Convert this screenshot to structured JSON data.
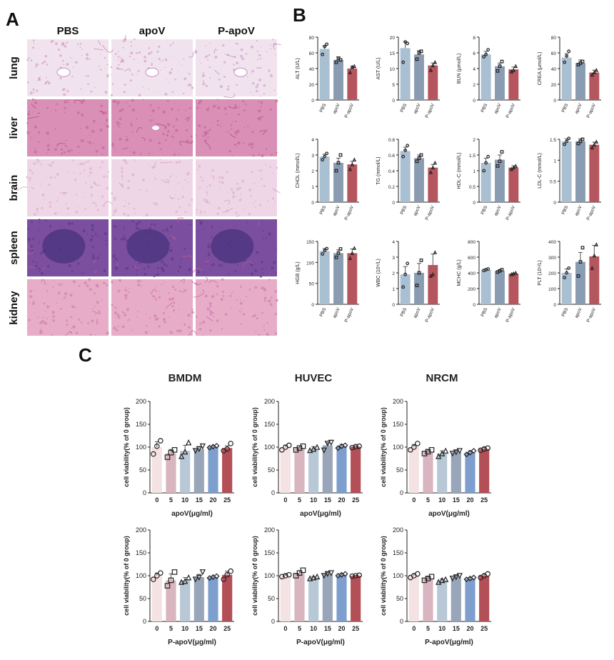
{
  "panel_labels": {
    "a": "A",
    "b": "B",
    "c": "C"
  },
  "histology": {
    "columns": [
      "PBS",
      "apoV",
      "P-apoV"
    ],
    "rows": [
      {
        "tissue": "lung",
        "base": "#f1e3ee",
        "dot": "#d7a7cd",
        "accent": "#c58fbc"
      },
      {
        "tissue": "liver",
        "base": "#d98fb6",
        "dot": "#c7689e",
        "accent": "#b7508e"
      },
      {
        "tissue": "brain",
        "base": "#efd6e6",
        "dot": "#dfb6cf",
        "accent": "#d4a3c3"
      },
      {
        "tissue": "spleen",
        "base": "#7b4e9f",
        "dot": "#5c3c8a",
        "accent": "#c35e8f"
      },
      {
        "tissue": "kidney",
        "base": "#e7acc8",
        "dot": "#d283af",
        "accent": "#c7709f"
      }
    ]
  },
  "colors": {
    "pbs_bar": "#a9bfd2",
    "apov_bar": "#8a9cb1",
    "papov_bar": "#b5565e",
    "axis": "#222222",
    "via_colors": [
      "#f4e3e2",
      "#d9b5c0",
      "#b8c8d6",
      "#99a6ba",
      "#7e9fce",
      "#b34f56"
    ]
  },
  "chart_data": [
    {
      "type": "bar",
      "id": "alt",
      "ylabel": "ALT (U/L)",
      "categories": [
        "PBS",
        "apoV",
        "P-apoV"
      ],
      "values": [
        65,
        51,
        40
      ],
      "errors": [
        4,
        4,
        3
      ],
      "ylim": [
        0,
        80
      ],
      "yticks": [
        0,
        20,
        40,
        60,
        80
      ],
      "points": [
        [
          58,
          68,
          71
        ],
        [
          48,
          53,
          51
        ],
        [
          35,
          42,
          43
        ]
      ],
      "markers": [
        "circle",
        "square",
        "triangle"
      ]
    },
    {
      "type": "bar",
      "id": "ast",
      "ylabel": "AST (U/L)",
      "categories": [
        "PBS",
        "apoV",
        "P-apoV"
      ],
      "values": [
        16.5,
        14.5,
        11
      ],
      "errors": [
        2,
        1.2,
        0.8
      ],
      "ylim": [
        0,
        20
      ],
      "yticks": [
        0,
        5,
        10,
        15,
        20
      ],
      "points": [
        [
          12,
          18.5,
          18
        ],
        [
          13,
          15,
          15.5
        ],
        [
          9.5,
          11,
          12
        ]
      ],
      "markers": [
        "circle",
        "square",
        "triangle"
      ]
    },
    {
      "type": "bar",
      "id": "bun",
      "ylabel": "BUN (μmol/L)",
      "categories": [
        "PBS",
        "apoV",
        "P-apoV"
      ],
      "values": [
        5.8,
        4.3,
        3.9
      ],
      "errors": [
        0.4,
        0.4,
        0.3
      ],
      "ylim": [
        0,
        8
      ],
      "yticks": [
        0,
        2,
        4,
        6,
        8
      ],
      "points": [
        [
          5.5,
          5.8,
          6.4
        ],
        [
          3.7,
          4.3,
          4.9
        ],
        [
          3.6,
          3.8,
          4.3
        ]
      ],
      "markers": [
        "circle",
        "square",
        "triangle"
      ]
    },
    {
      "type": "bar",
      "id": "crea",
      "ylabel": "CREA (μmol/L)",
      "categories": [
        "PBS",
        "apoV",
        "P-apoV"
      ],
      "values": [
        54,
        47,
        35
      ],
      "errors": [
        5,
        4,
        3
      ],
      "ylim": [
        0,
        80
      ],
      "yticks": [
        0,
        20,
        40,
        60,
        80
      ],
      "points": [
        [
          48,
          56,
          62
        ],
        [
          45,
          47,
          49
        ],
        [
          32,
          35,
          38
        ]
      ],
      "markers": [
        "circle",
        "square",
        "triangle"
      ]
    },
    {
      "type": "bar",
      "id": "chol",
      "ylabel": "CHOL (mmol/L)",
      "categories": [
        "PBS",
        "apoV",
        "P-apoV"
      ],
      "values": [
        2.9,
        2.5,
        2.4
      ],
      "errors": [
        0.15,
        0.3,
        0.2
      ],
      "ylim": [
        0,
        4
      ],
      "yticks": [
        0,
        1,
        2,
        3,
        4
      ],
      "points": [
        [
          2.7,
          2.9,
          3.1
        ],
        [
          2.0,
          2.5,
          3.0
        ],
        [
          2.1,
          2.4,
          2.7
        ]
      ],
      "markers": [
        "circle",
        "square",
        "triangle"
      ]
    },
    {
      "type": "bar",
      "id": "tg",
      "ylabel": "TG (mmol/L)",
      "categories": [
        "PBS",
        "apoV",
        "P-apoV"
      ],
      "values": [
        0.65,
        0.56,
        0.44
      ],
      "errors": [
        0.05,
        0.04,
        0.04
      ],
      "ylim": [
        0,
        0.8
      ],
      "yticks": [
        0.0,
        0.2,
        0.4,
        0.6,
        0.8
      ],
      "points": [
        [
          0.58,
          0.66,
          0.72
        ],
        [
          0.52,
          0.56,
          0.6
        ],
        [
          0.38,
          0.44,
          0.5
        ]
      ],
      "markers": [
        "circle",
        "square",
        "triangle"
      ]
    },
    {
      "type": "bar",
      "id": "hdlc",
      "ylabel": "HDL-C (mmol/L)",
      "categories": [
        "PBS",
        "apoV",
        "P-apoV"
      ],
      "values": [
        1.25,
        1.35,
        1.1
      ],
      "errors": [
        0.15,
        0.15,
        0.06
      ],
      "ylim": [
        0,
        2
      ],
      "yticks": [
        0.0,
        0.5,
        1.0,
        1.5,
        2.0
      ],
      "points": [
        [
          1.0,
          1.25,
          1.45
        ],
        [
          1.15,
          1.3,
          1.6
        ],
        [
          1.05,
          1.1,
          1.15
        ]
      ],
      "markers": [
        "circle",
        "square",
        "triangle"
      ]
    },
    {
      "type": "bar",
      "id": "ldlc",
      "ylabel": "LDL-C (mmol/L)",
      "categories": [
        "PBS",
        "apoV",
        "P-apoV"
      ],
      "values": [
        1.45,
        1.45,
        1.37
      ],
      "errors": [
        0.06,
        0.06,
        0.06
      ],
      "ylim": [
        0,
        1.5
      ],
      "yticks": [
        0.0,
        0.5,
        1.0,
        1.5
      ],
      "points": [
        [
          1.38,
          1.45,
          1.52
        ],
        [
          1.4,
          1.45,
          1.5
        ],
        [
          1.3,
          1.37,
          1.44
        ]
      ],
      "markers": [
        "circle",
        "square",
        "triangle"
      ]
    },
    {
      "type": "bar",
      "id": "hgb",
      "ylabel": "HGB (g/L)",
      "categories": [
        "PBS",
        "apoV",
        "P-apoV"
      ],
      "values": [
        127,
        122,
        122
      ],
      "errors": [
        6,
        8,
        10
      ],
      "ylim": [
        0,
        150
      ],
      "yticks": [
        0,
        50,
        100,
        150
      ],
      "points": [
        [
          120,
          128,
          133
        ],
        [
          112,
          122,
          132
        ],
        [
          110,
          122,
          134
        ]
      ],
      "markers": [
        "circle",
        "square",
        "triangle"
      ]
    },
    {
      "type": "bar",
      "id": "wbc",
      "ylabel": "WBC (10⁹/L)",
      "categories": [
        "PBS",
        "apoV",
        "P-apoV"
      ],
      "values": [
        1.9,
        2.0,
        2.5
      ],
      "errors": [
        0.5,
        0.6,
        0.7
      ],
      "ylim": [
        0,
        4
      ],
      "yticks": [
        0,
        1,
        2,
        3,
        4
      ],
      "points": [
        [
          1.1,
          1.9,
          2.6
        ],
        [
          1.2,
          2.0,
          2.8
        ],
        [
          1.8,
          1.9,
          3.3
        ]
      ],
      "markers": [
        "circle",
        "square",
        "triangle"
      ]
    },
    {
      "type": "bar",
      "id": "mchc",
      "ylabel": "MCHC (g/L)",
      "categories": [
        "PBS",
        "apoV",
        "P-apoV"
      ],
      "values": [
        440,
        425,
        390
      ],
      "errors": [
        8,
        10,
        8
      ],
      "ylim": [
        0,
        800
      ],
      "yticks": [
        0,
        200,
        400,
        600,
        800
      ],
      "points": [
        [
          430,
          440,
          450
        ],
        [
          410,
          425,
          440
        ],
        [
          380,
          390,
          400
        ]
      ],
      "markers": [
        "circle",
        "square",
        "triangle"
      ]
    },
    {
      "type": "bar",
      "id": "plt",
      "ylabel": "PLT (10⁹/L)",
      "categories": [
        "PBS",
        "apoV",
        "P-apoV"
      ],
      "values": [
        200,
        270,
        305
      ],
      "errors": [
        25,
        60,
        70
      ],
      "ylim": [
        0,
        400
      ],
      "yticks": [
        0,
        100,
        200,
        300,
        400
      ],
      "points": [
        [
          170,
          200,
          230
        ],
        [
          180,
          270,
          360
        ],
        [
          230,
          310,
          380
        ]
      ],
      "markers": [
        "circle",
        "square",
        "triangle"
      ]
    },
    {
      "type": "bar",
      "id": "bmdm_apov",
      "title": "BMDM",
      "ylabel": "cell viability(% of 0 group)",
      "xlabel": "apoV(μg/ml)",
      "categories": [
        "0",
        "5",
        "10",
        "15",
        "20",
        "25"
      ],
      "values": [
        100,
        87,
        92,
        96,
        101,
        98
      ],
      "errors": [
        12,
        8,
        12,
        5,
        2,
        5
      ],
      "ylim": [
        0,
        200
      ],
      "yticks": [
        0,
        50,
        100,
        150,
        200
      ],
      "points": [
        [
          85,
          102,
          114
        ],
        [
          78,
          88,
          94
        ],
        [
          80,
          90,
          110
        ],
        [
          92,
          96,
          102
        ],
        [
          99,
          101,
          103
        ],
        [
          92,
          96,
          108
        ]
      ],
      "markers": [
        "circle",
        "square",
        "triangle",
        "down-triangle",
        "diamond",
        "circle"
      ]
    },
    {
      "type": "bar",
      "id": "huvec_apov",
      "title": "HUVEC",
      "ylabel": "cell viability(% of 0 group)",
      "xlabel": "apoV(μg/ml)",
      "categories": [
        "0",
        "5",
        "10",
        "15",
        "20",
        "25"
      ],
      "values": [
        100,
        98,
        96,
        104,
        102,
        101
      ],
      "errors": [
        4,
        5,
        5,
        6,
        4,
        2
      ],
      "ylim": [
        0,
        200
      ],
      "yticks": [
        0,
        50,
        100,
        150,
        200
      ],
      "points": [
        [
          94,
          100,
          104
        ],
        [
          94,
          98,
          102
        ],
        [
          93,
          96,
          100
        ],
        [
          93,
          108,
          110
        ],
        [
          98,
          102,
          104
        ],
        [
          99,
          101,
          102
        ]
      ],
      "markers": [
        "circle",
        "square",
        "triangle",
        "down-triangle",
        "diamond",
        "circle"
      ]
    },
    {
      "type": "bar",
      "id": "nrcm_apov",
      "title": "NRCM",
      "ylabel": "cell viability(% of 0 group)",
      "xlabel": "apoV(μg/ml)",
      "categories": [
        "0",
        "5",
        "10",
        "15",
        "20",
        "25"
      ],
      "values": [
        100,
        90,
        86,
        89,
        88,
        96
      ],
      "errors": [
        6,
        4,
        6,
        3,
        4,
        3
      ],
      "ylim": [
        0,
        200
      ],
      "yticks": [
        0,
        50,
        100,
        150,
        200
      ],
      "points": [
        [
          94,
          100,
          108
        ],
        [
          86,
          90,
          94
        ],
        [
          80,
          86,
          92
        ],
        [
          86,
          89,
          92
        ],
        [
          84,
          88,
          92
        ],
        [
          93,
          96,
          98
        ]
      ],
      "markers": [
        "circle",
        "square",
        "triangle",
        "down-triangle",
        "diamond",
        "circle"
      ]
    },
    {
      "type": "bar",
      "id": "bmdm_papov",
      "ylabel": "cell viability(% of 0 group)",
      "xlabel": "P-apoV(μg/ml)",
      "categories": [
        "0",
        "5",
        "10",
        "15",
        "20",
        "25"
      ],
      "values": [
        100,
        90,
        90,
        97,
        97,
        102
      ],
      "errors": [
        6,
        14,
        6,
        6,
        2,
        8
      ],
      "ylim": [
        0,
        200
      ],
      "yticks": [
        0,
        50,
        100,
        150,
        200
      ],
      "points": [
        [
          92,
          100,
          106
        ],
        [
          78,
          90,
          108
        ],
        [
          86,
          88,
          96
        ],
        [
          92,
          96,
          108
        ],
        [
          95,
          97,
          99
        ],
        [
          92,
          102,
          110
        ]
      ],
      "markers": [
        "circle",
        "square",
        "triangle",
        "down-triangle",
        "diamond",
        "circle"
      ]
    },
    {
      "type": "bar",
      "id": "huvec_papov",
      "ylabel": "cell viability(% of 0 group)",
      "xlabel": "P-apoV(μg/ml)",
      "categories": [
        "0",
        "5",
        "10",
        "15",
        "20",
        "25"
      ],
      "values": [
        100,
        106,
        96,
        104,
        102,
        100
      ],
      "errors": [
        3,
        5,
        2,
        3,
        2,
        1
      ],
      "ylim": [
        0,
        200
      ],
      "yticks": [
        0,
        50,
        100,
        150,
        200
      ],
      "points": [
        [
          98,
          100,
          102
        ],
        [
          100,
          106,
          112
        ],
        [
          94,
          96,
          98
        ],
        [
          100,
          104,
          106
        ],
        [
          100,
          102,
          104
        ],
        [
          99,
          100,
          101
        ]
      ],
      "markers": [
        "circle",
        "square",
        "triangle",
        "down-triangle",
        "diamond",
        "circle"
      ]
    },
    {
      "type": "bar",
      "id": "nrcm_papov",
      "ylabel": "cell viability(% of 0 group)",
      "xlabel": "P-apoV(μg/ml)",
      "categories": [
        "0",
        "5",
        "10",
        "15",
        "20",
        "25"
      ],
      "values": [
        100,
        94,
        90,
        97,
        94,
        100
      ],
      "errors": [
        4,
        4,
        3,
        3,
        2,
        3
      ],
      "ylim": [
        0,
        200
      ],
      "yticks": [
        0,
        50,
        100,
        150,
        200
      ],
      "points": [
        [
          96,
          100,
          104
        ],
        [
          90,
          94,
          98
        ],
        [
          86,
          90,
          92
        ],
        [
          94,
          97,
          100
        ],
        [
          92,
          94,
          96
        ],
        [
          96,
          100,
          104
        ]
      ],
      "markers": [
        "circle",
        "square",
        "triangle",
        "down-triangle",
        "diamond",
        "circle"
      ]
    }
  ]
}
